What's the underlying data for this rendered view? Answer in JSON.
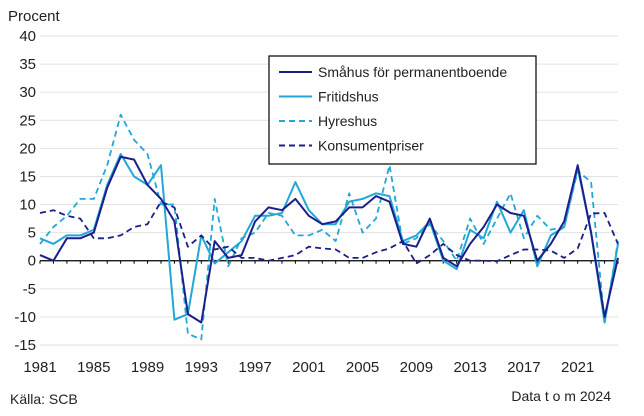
{
  "chart_data": {
    "type": "line",
    "title": "",
    "xlabel": "",
    "ylabel": "Procent",
    "ylim": [
      -15,
      40
    ],
    "yticks": [
      -15,
      -10,
      -5,
      0,
      5,
      10,
      15,
      20,
      25,
      30,
      35,
      40
    ],
    "xlim": [
      1981,
      2024
    ],
    "xticks": [
      1981,
      1985,
      1989,
      1993,
      1997,
      2001,
      2005,
      2009,
      2013,
      2017,
      2021
    ],
    "grid": "horizontal",
    "legend_position": "top-right",
    "source": "Källa: SCB",
    "note": "Data t o m 2024",
    "x": [
      1981,
      1982,
      1983,
      1984,
      1985,
      1986,
      1987,
      1988,
      1989,
      1990,
      1991,
      1992,
      1993,
      1994,
      1995,
      1996,
      1997,
      1998,
      1999,
      2000,
      2001,
      2002,
      2003,
      2004,
      2005,
      2006,
      2007,
      2008,
      2009,
      2010,
      2011,
      2012,
      2013,
      2014,
      2015,
      2016,
      2017,
      2018,
      2019,
      2020,
      2021,
      2022,
      2023,
      2024
    ],
    "series": [
      {
        "name": "Småhus för permanentboende",
        "color": "#1b1f8a",
        "dash": "solid",
        "values": [
          1,
          0,
          4,
          4,
          5,
          13,
          18.5,
          18,
          13.5,
          11,
          7,
          -9.5,
          -11,
          3.5,
          0.5,
          1,
          7,
          9.5,
          9,
          11,
          8,
          6.5,
          7,
          9.5,
          9.5,
          11.5,
          10.5,
          3,
          2.5,
          7.5,
          0.5,
          -1,
          3,
          6,
          10,
          8.5,
          8,
          0,
          3,
          7,
          17,
          5,
          -10,
          0.5
        ]
      },
      {
        "name": "Fritidshus",
        "color": "#22a7d6",
        "dash": "solid",
        "values": [
          4,
          3,
          4.5,
          4.5,
          5.5,
          13.5,
          19,
          15,
          13.5,
          17,
          -10.5,
          -9.5,
          4.5,
          -0.5,
          1.5,
          3.5,
          8,
          8,
          8.5,
          14,
          9,
          6.5,
          6.5,
          10.5,
          11,
          12,
          11.5,
          3.5,
          4.5,
          7,
          0,
          -1.5,
          5.5,
          4,
          10.5,
          5,
          9,
          -1,
          4.5,
          6,
          16.5,
          5,
          -11,
          3
        ]
      },
      {
        "name": "Hyreshus",
        "color": "#22a7d6",
        "dash": "dashed",
        "values": [
          3,
          6,
          8,
          11,
          11,
          17,
          26,
          21.5,
          19,
          10,
          10,
          -13,
          -14,
          11,
          -1,
          4,
          5,
          8.5,
          8,
          4.5,
          4.5,
          5.5,
          3.5,
          12,
          5,
          7.5,
          17,
          3,
          4,
          6.5,
          3.5,
          0,
          7.5,
          3,
          7.5,
          12,
          4,
          8,
          5.5,
          6,
          16,
          14,
          -11,
          3.5
        ]
      },
      {
        "name": "Konsumentpriser",
        "color": "#1b1f8a",
        "dash": "dashed",
        "values": [
          8.5,
          9,
          8,
          7.5,
          4,
          4,
          4.5,
          6,
          6.5,
          10.5,
          9.5,
          2.5,
          4.5,
          2,
          2.5,
          0.5,
          0.5,
          0,
          0.5,
          1,
          2.5,
          2.2,
          2,
          0.5,
          0.5,
          1.5,
          2.2,
          3.5,
          -0.5,
          1,
          3,
          1,
          0,
          0,
          -0.1,
          1,
          2,
          2,
          1.8,
          0.5,
          2.2,
          8.4,
          8.5,
          3
        ]
      }
    ]
  }
}
